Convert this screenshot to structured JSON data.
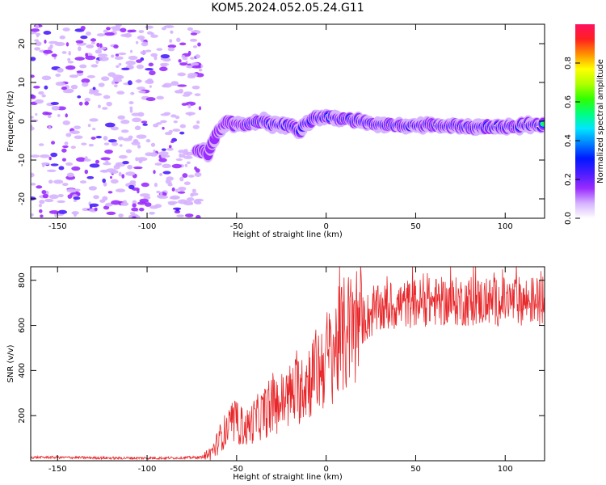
{
  "figure": {
    "title": "KOM5.2024.052.05.24.G11"
  },
  "chart_data": [
    {
      "type": "heatmap",
      "xlabel": "Height of straight line (km)",
      "ylabel": "Frequency (Hz)",
      "xlim": [
        -165,
        122
      ],
      "ylim": [
        -25,
        25
      ],
      "xticks": [
        -150,
        -100,
        -50,
        0,
        50,
        100
      ],
      "yticks": [
        -20,
        -10,
        0,
        10,
        20
      ],
      "colorbar": {
        "label": "Normalized spectral amplitude",
        "range": [
          0,
          1
        ],
        "ticks": [
          "0.0",
          "0.2",
          "0.4",
          "0.6",
          "0.8"
        ]
      },
      "colormap": [
        "#ffffff",
        "#d6b3ff",
        "#9a2cff",
        "#4a1cff",
        "#0018ff",
        "#0080ff",
        "#00e5ff",
        "#00ff80",
        "#30ff00",
        "#b0ff00",
        "#ffff00",
        "#ff9000",
        "#ff2020",
        "#ff1060"
      ],
      "features": {
        "noise_region_x": [
          -165,
          -70
        ],
        "signal_track": {
          "x": [
            -72,
            -66,
            -62,
            -55,
            -50,
            -45,
            -40,
            -35,
            -30,
            -25,
            -20,
            -15,
            -12,
            -8,
            -5,
            0,
            5,
            10,
            20,
            30,
            40,
            50,
            60,
            70,
            80,
            90,
            100,
            110,
            120
          ],
          "frequency": [
            -7.5,
            -8,
            -4,
            0,
            -1,
            -1,
            0,
            0,
            -1,
            -1,
            -1,
            -3,
            -1,
            0.5,
            1,
            1,
            1,
            0.5,
            0,
            -1,
            -1,
            -1,
            -1,
            -1,
            -1.5,
            -1.5,
            -1.5,
            -1,
            -1
          ]
        }
      }
    },
    {
      "type": "line",
      "xlabel": "Height of straight line (km)",
      "ylabel": "SNR (v/v)",
      "xlim": [
        -165,
        122
      ],
      "ylim": [
        0,
        860
      ],
      "xticks": [
        -150,
        -100,
        -50,
        0,
        50,
        100
      ],
      "yticks": [
        200,
        400,
        600,
        800
      ],
      "color": "#e8272a",
      "series": [
        {
          "x": [
            -165,
            -150,
            -120,
            -90,
            -70,
            -65,
            -62,
            -58,
            -55,
            -50,
            -45,
            -40,
            -35,
            -30,
            -25,
            -20,
            -15,
            -10,
            -5,
            0,
            5,
            10,
            15,
            20,
            25,
            30,
            40,
            50,
            60,
            70,
            80,
            90,
            100,
            110,
            122
          ],
          "y": [
            15,
            15,
            12,
            12,
            15,
            30,
            60,
            120,
            140,
            170,
            140,
            180,
            210,
            240,
            260,
            290,
            320,
            360,
            400,
            450,
            500,
            550,
            590,
            620,
            650,
            670,
            690,
            700,
            705,
            705,
            705,
            705,
            705,
            710,
            710
          ]
        }
      ]
    }
  ]
}
